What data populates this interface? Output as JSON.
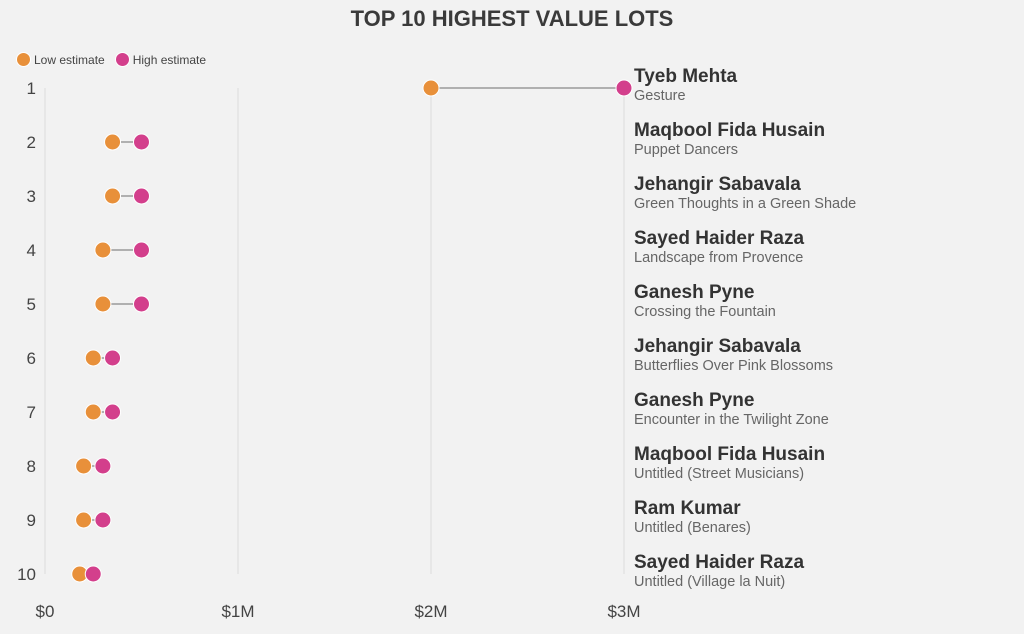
{
  "chart_data": {
    "type": "dumbbell",
    "title": "TOP 10 HIGHEST VALUE LOTS",
    "legend": [
      {
        "name": "Low estimate",
        "color": "#E8903A"
      },
      {
        "name": "High estimate",
        "color": "#D33F8C"
      }
    ],
    "legend_placement": "top-left",
    "x_ticks": [
      "$0",
      "$1M",
      "$2M",
      "$3M"
    ],
    "x_tick_values": [
      0,
      1000000,
      2000000,
      3000000
    ],
    "xlim": [
      0,
      3000000
    ],
    "grid": "vertical",
    "rows": [
      {
        "rank": "1",
        "artist": "Tyeb Mehta",
        "work": "Gesture",
        "low": 2000000,
        "high": 3000000
      },
      {
        "rank": "2",
        "artist": "Maqbool Fida Husain",
        "work": "Puppet Dancers",
        "low": 350000,
        "high": 500000
      },
      {
        "rank": "3",
        "artist": "Jehangir Sabavala",
        "work": "Green Thoughts in a Green Shade",
        "low": 350000,
        "high": 500000
      },
      {
        "rank": "4",
        "artist": "Sayed Haider Raza",
        "work": "Landscape from Provence",
        "low": 300000,
        "high": 500000
      },
      {
        "rank": "5",
        "artist": "Ganesh Pyne",
        "work": "Crossing the Fountain",
        "low": 300000,
        "high": 500000
      },
      {
        "rank": "6",
        "artist": "Jehangir Sabavala",
        "work": "Butterflies Over Pink Blossoms",
        "low": 250000,
        "high": 350000
      },
      {
        "rank": "7",
        "artist": "Ganesh Pyne",
        "work": "Encounter in the Twilight Zone",
        "low": 250000,
        "high": 350000
      },
      {
        "rank": "8",
        "artist": "Maqbool Fida Husain",
        "work": "Untitled (Street Musicians)",
        "low": 200000,
        "high": 300000
      },
      {
        "rank": "9",
        "artist": "Ram Kumar",
        "work": "Untitled (Benares)",
        "low": 200000,
        "high": 300000
      },
      {
        "rank": "10",
        "artist": "Sayed Haider Raza",
        "work": "Untitled (Village la Nuit)",
        "low": 180000,
        "high": 250000
      }
    ]
  }
}
